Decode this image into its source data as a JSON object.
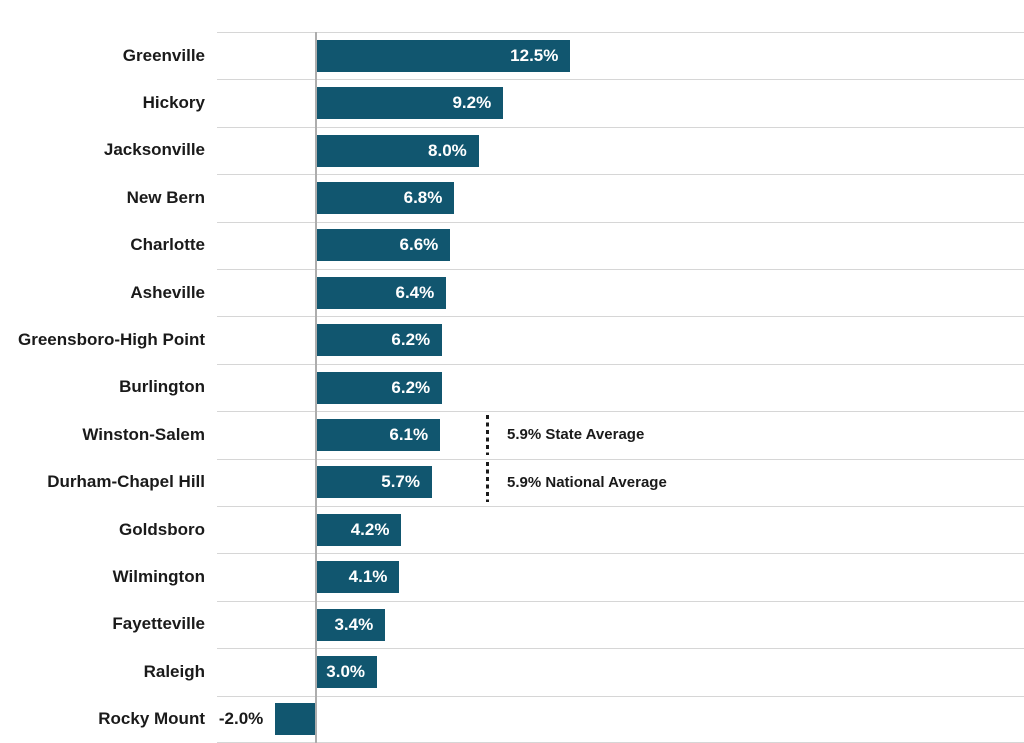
{
  "chart_data": {
    "type": "bar",
    "orientation": "horizontal",
    "title": "",
    "xlabel": "",
    "ylabel": "",
    "legend": "none",
    "grid": "horizontal row separators only, no x-axis ticks or labels visible",
    "axis_range_percent_approx": [
      -4.9,
      34.8
    ],
    "categories": [
      "Greenville",
      "Hickory",
      "Jacksonville",
      "New Bern",
      "Charlotte",
      "Asheville",
      "Greensboro-High Point",
      "Burlington",
      "Winston-Salem",
      "Durham-Chapel Hill",
      "Goldsboro",
      "Wilmington",
      "Fayetteville",
      "Raleigh",
      "Rocky Mount"
    ],
    "values": [
      12.5,
      9.2,
      8.0,
      6.8,
      6.6,
      6.4,
      6.2,
      6.2,
      6.1,
      5.7,
      4.2,
      4.1,
      3.4,
      3.0,
      -2.0
    ],
    "value_labels": [
      "12.5%",
      "9.2%",
      "8.0%",
      "6.8%",
      "6.6%",
      "6.4%",
      "6.2%",
      "6.2%",
      "6.1%",
      "5.7%",
      "4.2%",
      "4.1%",
      "3.4%",
      "3.0%",
      "-2.0%"
    ],
    "annotations": [
      {
        "text": "5.9% State Average",
        "value_percent": 5.9,
        "attached_row": "Winston-Salem"
      },
      {
        "text": "5.9% National Average",
        "value_percent": 5.9,
        "attached_row": "Durham-Chapel Hill"
      }
    ],
    "colors": {
      "bar_fill": "#11566F",
      "value_label_inside": "#ffffff",
      "negative_value_label": "#1a1a1a",
      "category_label": "#1a1a1a",
      "gridline": "#d6d6d6",
      "axis_line": "#adadad",
      "annotation_text": "#1a1a1a",
      "annotation_dotted_line": "#1a1a1a",
      "background": "#ffffff"
    }
  }
}
